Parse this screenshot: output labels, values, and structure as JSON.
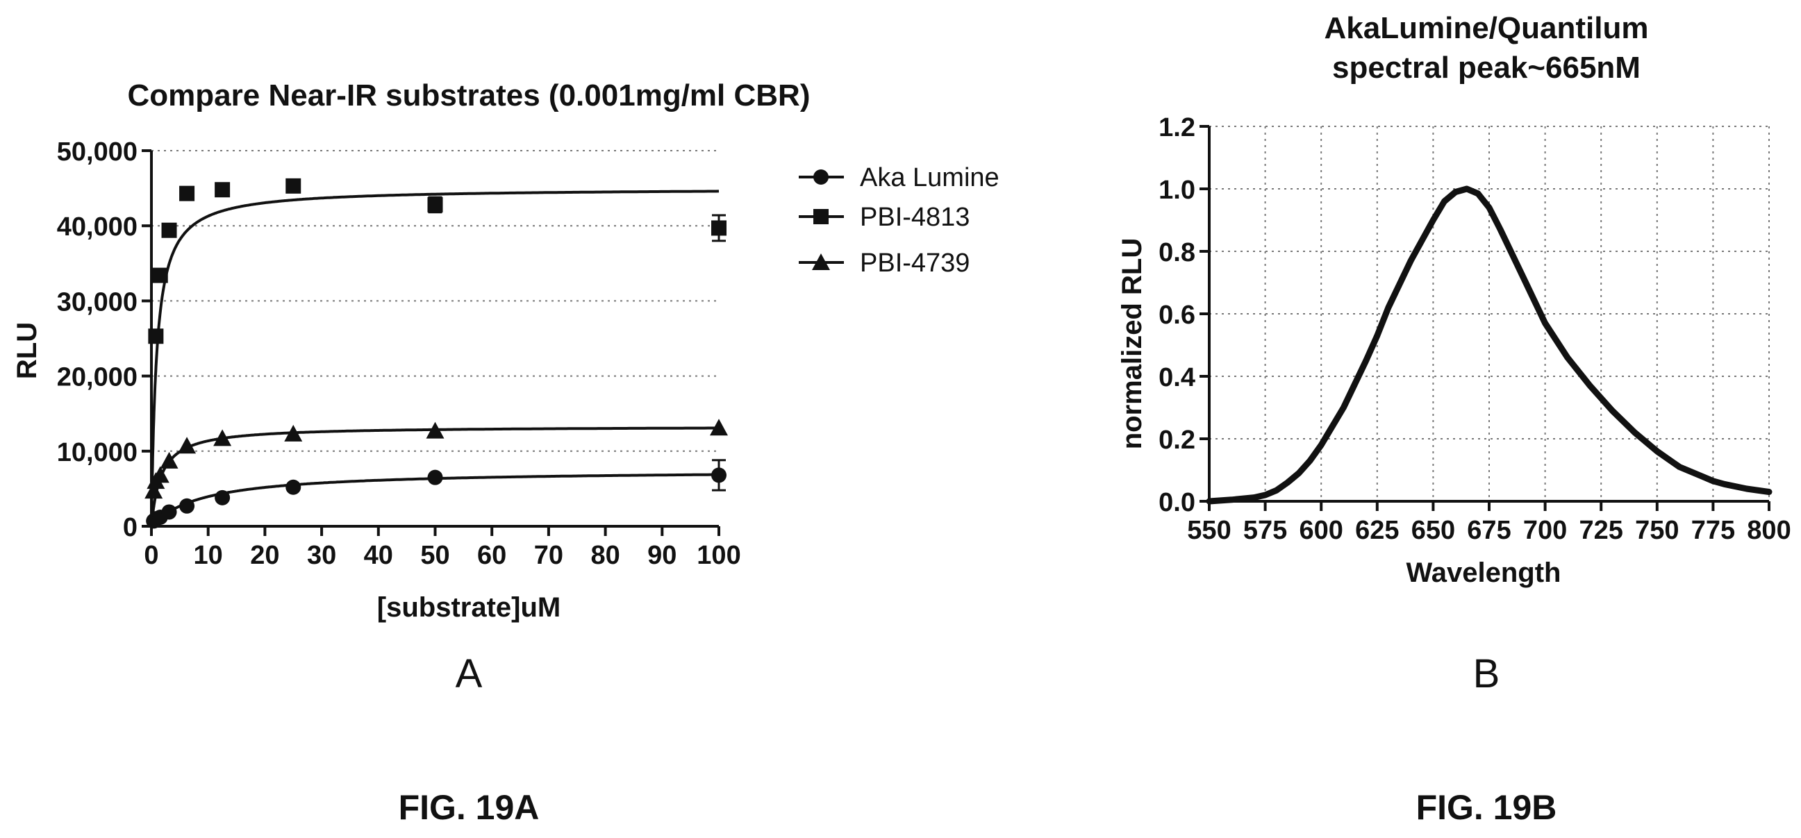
{
  "chart_data": [
    {
      "type": "scatter",
      "title": "Compare Near-IR substrates (0.001mg/ml CBR)",
      "xlabel": "[substrate]uM",
      "ylabel": "RLU",
      "xlim": [
        0,
        100
      ],
      "ylim": [
        0,
        50000
      ],
      "x_ticks": [
        "0",
        "10",
        "20",
        "30",
        "40",
        "50",
        "60",
        "70",
        "80",
        "90",
        "100"
      ],
      "y_ticks": [
        "0",
        "10,000",
        "20,000",
        "30,000",
        "40,000",
        "50,000"
      ],
      "grid": "horizontal dotted",
      "legend_position": "right",
      "panel_label": "A",
      "figure_label": "FIG. 19A",
      "series": [
        {
          "name": "Aka Lumine",
          "marker": "circle",
          "x": [
            0.39,
            0.78,
            1.56,
            3.125,
            6.25,
            12.5,
            25,
            50,
            100
          ],
          "y": [
            700,
            1000,
            1200,
            1900,
            2700,
            3800,
            5200,
            6500,
            6800
          ],
          "err": [
            0,
            0,
            0,
            0,
            0,
            0,
            0,
            0,
            2000
          ],
          "fit": {
            "vmax": 7500,
            "km": 9
          }
        },
        {
          "name": "PBI-4813",
          "marker": "square",
          "x": [
            0.78,
            1.56,
            3.125,
            6.25,
            12.5,
            25,
            50,
            100
          ],
          "y": [
            25300,
            33400,
            39400,
            44300,
            44800,
            45300,
            42800,
            39700
          ],
          "err": [
            0,
            0,
            0,
            0,
            0,
            0,
            1000,
            1700
          ],
          "fit": {
            "vmax": 45000,
            "km": 0.9
          }
        },
        {
          "name": "PBI-4739",
          "marker": "triangle",
          "x": [
            0.39,
            0.78,
            1.56,
            3.125,
            6.25,
            12.5,
            25,
            50,
            100
          ],
          "y": [
            4700,
            6000,
            6800,
            8700,
            10700,
            11700,
            12300,
            12700,
            13100
          ],
          "err": [
            0,
            0,
            0,
            0,
            0,
            0,
            0,
            0,
            0
          ],
          "fit": {
            "vmax": 13300,
            "km": 1.7
          }
        }
      ]
    },
    {
      "type": "line",
      "title": "AkaLumine/Quantilum spectral peak~665nM",
      "title_lines": [
        "AkaLumine/Quantilum",
        "spectral peak~665nM"
      ],
      "xlabel": "Wavelength",
      "ylabel": "normalized RLU",
      "xlim": [
        550,
        800
      ],
      "ylim": [
        0,
        1.2
      ],
      "x_ticks": [
        "550",
        "575",
        "600",
        "625",
        "650",
        "675",
        "700",
        "725",
        "750",
        "775",
        "800"
      ],
      "y_ticks": [
        "0.0",
        "0.2",
        "0.4",
        "0.6",
        "0.8",
        "1.0",
        "1.2"
      ],
      "grid": "both dotted",
      "panel_label": "B",
      "figure_label": "FIG. 19B",
      "series": [
        {
          "x": [
            550,
            560,
            570,
            575,
            580,
            585,
            590,
            595,
            600,
            610,
            620,
            625,
            630,
            640,
            650,
            655,
            660,
            665,
            670,
            675,
            680,
            690,
            700,
            710,
            720,
            725,
            730,
            740,
            750,
            760,
            770,
            775,
            780,
            790,
            800
          ],
          "y": [
            0.0,
            0.005,
            0.012,
            0.02,
            0.035,
            0.06,
            0.09,
            0.13,
            0.18,
            0.3,
            0.45,
            0.53,
            0.62,
            0.77,
            0.9,
            0.96,
            0.99,
            1.0,
            0.985,
            0.94,
            0.87,
            0.72,
            0.57,
            0.46,
            0.37,
            0.33,
            0.29,
            0.22,
            0.16,
            0.11,
            0.08,
            0.065,
            0.055,
            0.04,
            0.03
          ]
        }
      ]
    }
  ]
}
